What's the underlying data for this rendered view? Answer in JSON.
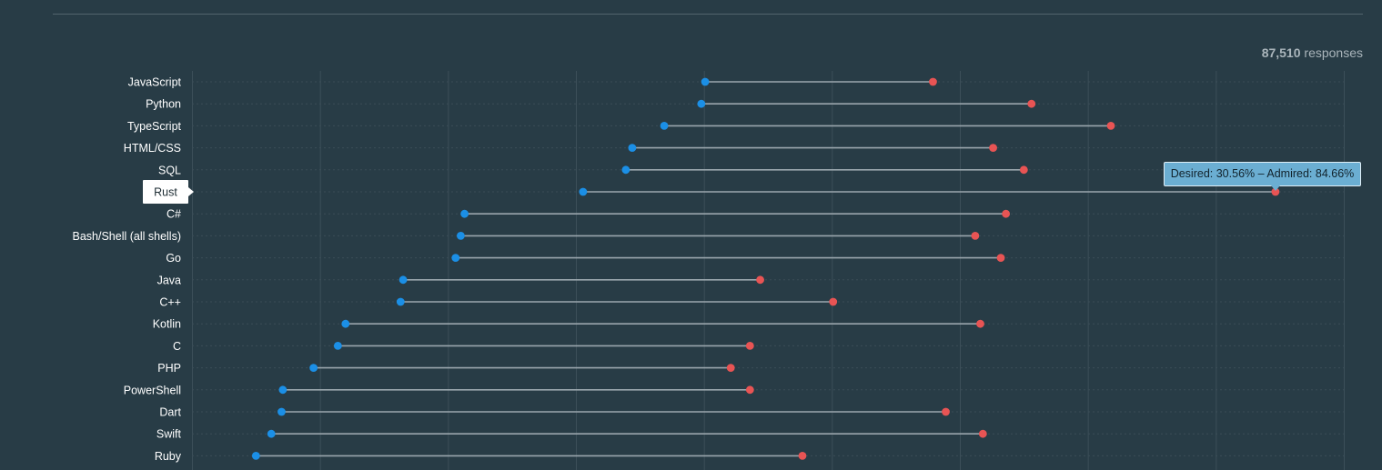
{
  "header": {
    "response_count": "87,510",
    "response_suffix": "responses"
  },
  "tooltip": {
    "desired_label": "Desired:",
    "desired_value": "30.56%",
    "separator": "–",
    "admired_label": "Admired:",
    "admired_value": "84.66%"
  },
  "colors": {
    "desired": "#1b8fe6",
    "admired": "#e85454",
    "connector": "#9aa6ad",
    "grid": "#3c4f59",
    "row_guide": "#3a4d57"
  },
  "chart_data": {
    "type": "dumbbell",
    "highlighted_category": "Rust",
    "categories": [
      "JavaScript",
      "Python",
      "TypeScript",
      "HTML/CSS",
      "SQL",
      "Rust",
      "C#",
      "Bash/Shell (all shells)",
      "Go",
      "Java",
      "C++",
      "Kotlin",
      "C",
      "PHP",
      "PowerShell",
      "Dart",
      "Swift",
      "Ruby"
    ],
    "xlim": [
      0,
      90
    ],
    "grid": true,
    "series": [
      {
        "name": "Desired",
        "values": [
          40.1,
          39.8,
          36.9,
          34.4,
          33.9,
          30.56,
          21.3,
          21.0,
          20.6,
          16.5,
          16.3,
          12.0,
          11.4,
          9.5,
          7.1,
          7.0,
          6.2,
          5.0
        ]
      },
      {
        "name": "Admired",
        "values": [
          57.9,
          65.6,
          71.8,
          62.6,
          65.0,
          84.66,
          63.6,
          61.2,
          63.2,
          44.4,
          50.1,
          61.6,
          43.6,
          42.1,
          43.6,
          58.9,
          61.8,
          47.7
        ]
      }
    ]
  }
}
